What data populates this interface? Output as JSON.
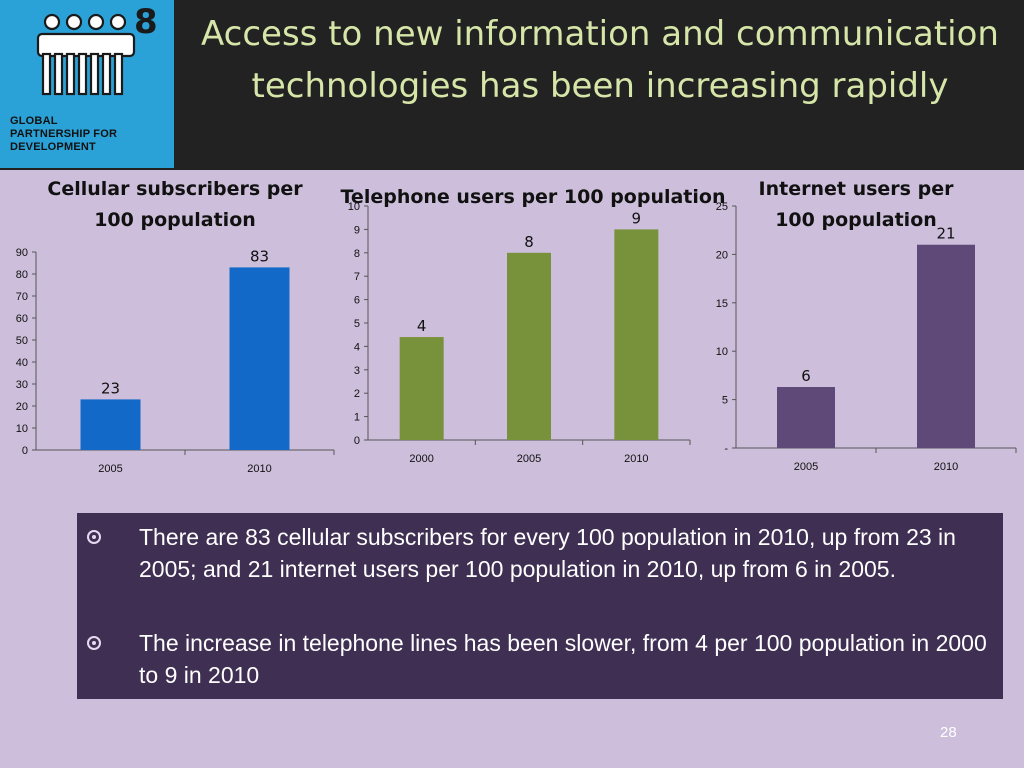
{
  "logo": {
    "number": "8",
    "text_lines": [
      "GLOBAL",
      "PARTNERSHIP FOR",
      "DEVELOPMENT"
    ],
    "icon": "people-group-icon",
    "color": "#2aa2d8"
  },
  "title": "Access to new information and communication technologies has been increasing rapidly",
  "chart_data": [
    {
      "type": "bar",
      "title": "Cellular subscribers per 100 population",
      "categories": [
        "2005",
        "2010"
      ],
      "values": [
        23,
        83
      ],
      "ylim": [
        0,
        90
      ],
      "yticks": [
        "0",
        "10",
        "20",
        "30",
        "40",
        "50",
        "60",
        "70",
        "80",
        "90"
      ],
      "color": "#1269c7",
      "data_labels": [
        "23",
        "83"
      ]
    },
    {
      "type": "bar",
      "title": "Telephone users per 100 population",
      "categories": [
        "2000",
        "2005",
        "2010"
      ],
      "values": [
        4.4,
        8,
        9
      ],
      "ylim": [
        0,
        10
      ],
      "yticks": [
        "0",
        "1",
        "2",
        "3",
        "4",
        "5",
        "6",
        "7",
        "8",
        "9",
        "10"
      ],
      "color": "#77923b",
      "data_labels": [
        "4",
        "8",
        "9"
      ]
    },
    {
      "type": "bar",
      "title": "Internet users per 100 population",
      "categories": [
        "2005",
        "2010"
      ],
      "values": [
        6.3,
        21
      ],
      "ylim": [
        0,
        25
      ],
      "yticks": [
        "-",
        "5",
        "10",
        "15",
        "20",
        "25"
      ],
      "color": "#5e4978",
      "data_labels": [
        "6",
        "21"
      ]
    }
  ],
  "bullets": [
    "There are 83 cellular subscribers for  every 100 population  in 2010, up from 23 in 2005; and 21 internet users per 100 population  in 2010, up from 6  in 2005.",
    "The increase in telephone lines has been slower, from 4 per 100 population in 2000 to 9 in 2010"
  ],
  "page_number": "28"
}
